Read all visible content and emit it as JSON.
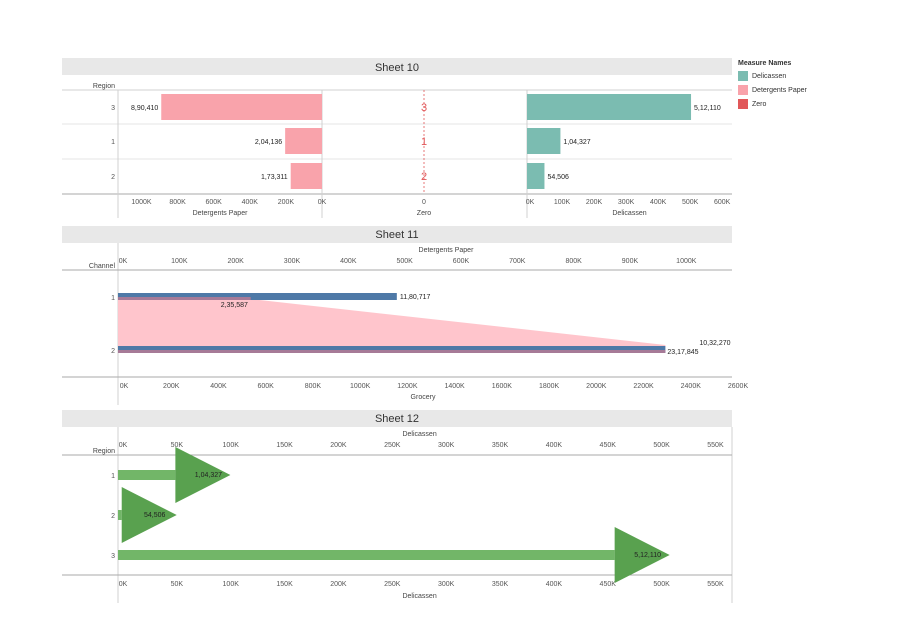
{
  "colors": {
    "deli": "#7bbcb1",
    "det": "#f9a3ab",
    "zero": "#e15759",
    "blue": "#4e79a7",
    "pink_area": "#ffc2c9",
    "green": "#59a14f",
    "green_light": "#72b668",
    "header_bg": "#e8e8e8",
    "grid": "#d0d0d0"
  },
  "legend": {
    "title": "Measure Names",
    "items": [
      {
        "label": "Delicassen",
        "color": "#7bbcb1"
      },
      {
        "label": "Detergents Paper",
        "color": "#f9a3ab"
      },
      {
        "label": "Zero",
        "color": "#e15759"
      }
    ]
  },
  "chart_data": [
    {
      "type": "bar",
      "title": "Sheet 10",
      "row_header": "Region",
      "categories": [
        "3",
        "1",
        "2"
      ],
      "panels": [
        {
          "name": "Detergents Paper",
          "axis_title": "Detergents Paper",
          "reversed": true,
          "ticks": [
            "1000K",
            "800K",
            "600K",
            "400K",
            "200K",
            "0K"
          ],
          "xlim": [
            0,
            1130000
          ],
          "values": [
            890410,
            204136,
            173311
          ],
          "labels": [
            "8,90,410",
            "2,04,136",
            "1,73,311"
          ]
        },
        {
          "name": "Zero",
          "axis_title": "Zero",
          "ticks": [
            "0"
          ],
          "values": [
            0,
            0,
            0
          ],
          "labels": [
            "3",
            "1",
            "2"
          ]
        },
        {
          "name": "Delicassen",
          "axis_title": "Delicassen",
          "ticks": [
            "0K",
            "100K",
            "200K",
            "300K",
            "400K",
            "500K",
            "600K"
          ],
          "xlim": [
            0,
            640000
          ],
          "values": [
            512110,
            104327,
            54506
          ],
          "labels": [
            "5,12,110",
            "1,04,327",
            "54,506"
          ]
        }
      ]
    },
    {
      "type": "area",
      "title": "Sheet 11",
      "row_header": "Channel",
      "categories": [
        "1",
        "2"
      ],
      "top_axis": {
        "title": "Detergents Paper",
        "ticks": [
          "0K",
          "100K",
          "200K",
          "300K",
          "400K",
          "500K",
          "600K",
          "700K",
          "800K",
          "900K",
          "1000K"
        ],
        "xlim": [
          0,
          1090000
        ]
      },
      "bottom_axis": {
        "title": "Grocery",
        "ticks": [
          "0K",
          "200K",
          "400K",
          "600K",
          "800K",
          "1000K",
          "1200K",
          "1400K",
          "1600K",
          "1800K",
          "2000K",
          "2200K",
          "2400K",
          "2600K"
        ],
        "xlim": [
          0,
          2600000
        ]
      },
      "series": [
        {
          "name": "Detergents Paper",
          "values": [
            235587,
            1032270
          ],
          "labels": [
            "2,35,587",
            "10,32,270"
          ]
        },
        {
          "name": "Grocery",
          "values": [
            1180717,
            2317845
          ],
          "labels": [
            "11,80,717",
            "23,17,845"
          ]
        }
      ]
    },
    {
      "type": "bar",
      "title": "Sheet 12",
      "row_header": "Region",
      "categories": [
        "1",
        "2",
        "3"
      ],
      "values": [
        104327,
        54506,
        512110
      ],
      "labels": [
        "1,04,327",
        "54,506",
        "5,12,110"
      ],
      "top_axis": {
        "title": "Delicassen",
        "ticks": [
          "0K",
          "50K",
          "100K",
          "150K",
          "200K",
          "250K",
          "300K",
          "350K",
          "400K",
          "450K",
          "500K",
          "550K"
        ],
        "xlim": [
          0,
          570000
        ]
      },
      "bottom_axis": {
        "title": "Delicassen",
        "ticks": [
          "0K",
          "50K",
          "100K",
          "150K",
          "200K",
          "250K",
          "300K",
          "350K",
          "400K",
          "450K",
          "500K",
          "550K"
        ],
        "xlim": [
          0,
          570000
        ]
      }
    }
  ]
}
